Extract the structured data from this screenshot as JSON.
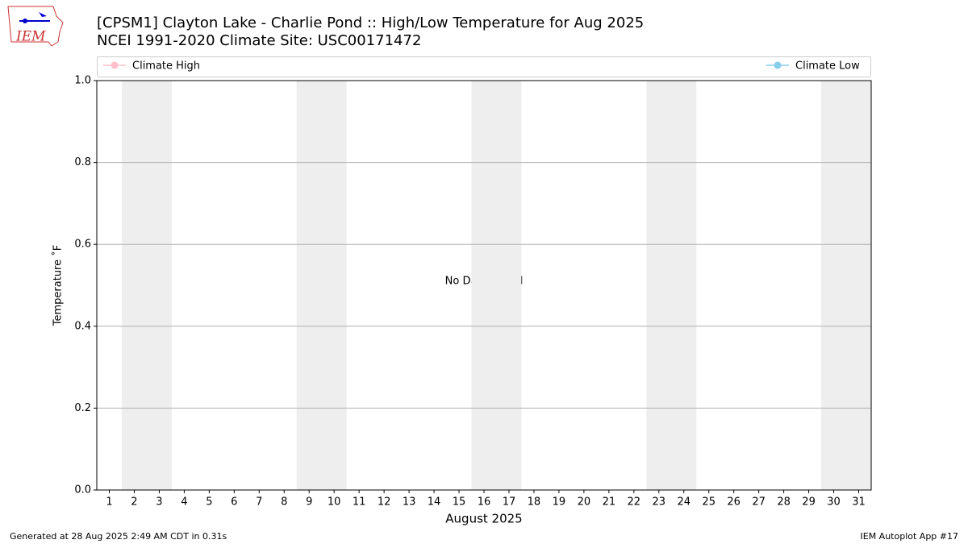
{
  "logo": "IEM",
  "footer_left": "Generated at 28 Aug 2025 2:49 AM CDT in 0.31s",
  "footer_right": "IEM Autoplot App #17",
  "chart_data": {
    "type": "line",
    "title": "[CPSM1] Clayton Lake - Charlie Pond :: High/Low Temperature for Aug 2025",
    "subtitle": "NCEI 1991-2020 Climate Site: USC00171472",
    "x_label": "August 2025",
    "y_label": "Temperature ˚F",
    "annotation": "No Data Found",
    "x": [],
    "series": [
      {
        "name": "Climate High",
        "color": "#ffc0cb",
        "values": []
      },
      {
        "name": "Climate Low",
        "color": "#87ceeb",
        "values": []
      }
    ],
    "xlim": [
      0.5,
      31.5
    ],
    "xticks": [
      1,
      2,
      3,
      4,
      5,
      6,
      7,
      8,
      9,
      10,
      11,
      12,
      13,
      14,
      15,
      16,
      17,
      18,
      19,
      20,
      21,
      22,
      23,
      24,
      25,
      26,
      27,
      28,
      29,
      30,
      31
    ],
    "ylim": [
      0,
      1
    ],
    "yticks": [
      {
        "value": 0,
        "label": "0.0"
      },
      0.2,
      0.4,
      0.6,
      0.8,
      {
        "value": 1,
        "label": "1.0"
      }
    ],
    "weekend_spans": [
      [
        1.5,
        3.5
      ],
      [
        8.5,
        10.5
      ],
      [
        15.5,
        17.5
      ],
      [
        22.5,
        24.5
      ],
      [
        29.5,
        31.5
      ]
    ],
    "weekend_color": "#eeeeee",
    "grid": true
  }
}
